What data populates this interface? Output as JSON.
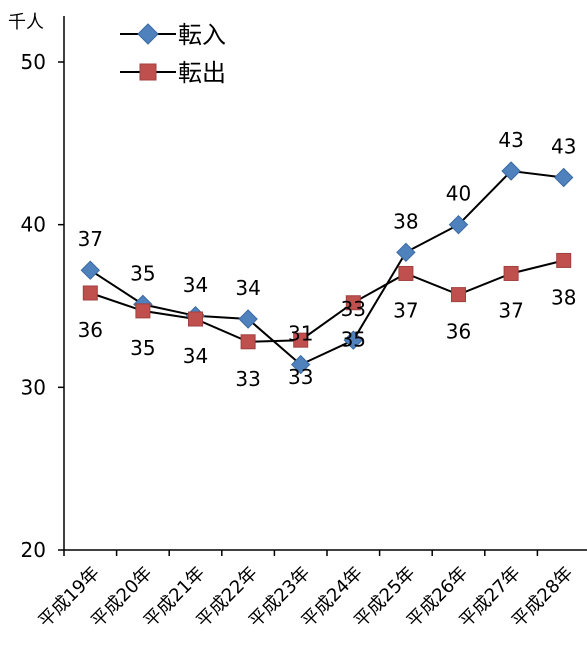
{
  "chart_data": {
    "type": "line",
    "unit_label": "千人",
    "categories": [
      "平成19年",
      "平成20年",
      "平成21年",
      "平成22年",
      "平成23年",
      "平成24年",
      "平成25年",
      "平成26年",
      "平成27年",
      "平成28年"
    ],
    "y_ticks": [
      "20",
      "30",
      "40",
      "50"
    ],
    "ylim": [
      20,
      50
    ],
    "grid": false,
    "legend_position": "top-left",
    "series": [
      {
        "name": "転入",
        "values": [
          37.2,
          35.1,
          34.4,
          34.2,
          31.4,
          32.9,
          38.3,
          40.0,
          43.3,
          42.9
        ],
        "labels": [
          "37",
          "35",
          "34",
          "34",
          "31",
          "33",
          "38",
          "40",
          "43",
          "43"
        ],
        "label_position": "above",
        "color": "#4F81BD",
        "marker": "diamond"
      },
      {
        "name": "転出",
        "values": [
          35.8,
          34.7,
          34.2,
          32.8,
          32.9,
          35.2,
          37.0,
          35.7,
          37.0,
          37.8
        ],
        "labels": [
          "36",
          "35",
          "34",
          "33",
          "33",
          "35",
          "37",
          "36",
          "37",
          "38"
        ],
        "label_position": "below",
        "color": "#C0504D",
        "marker": "square"
      }
    ]
  }
}
